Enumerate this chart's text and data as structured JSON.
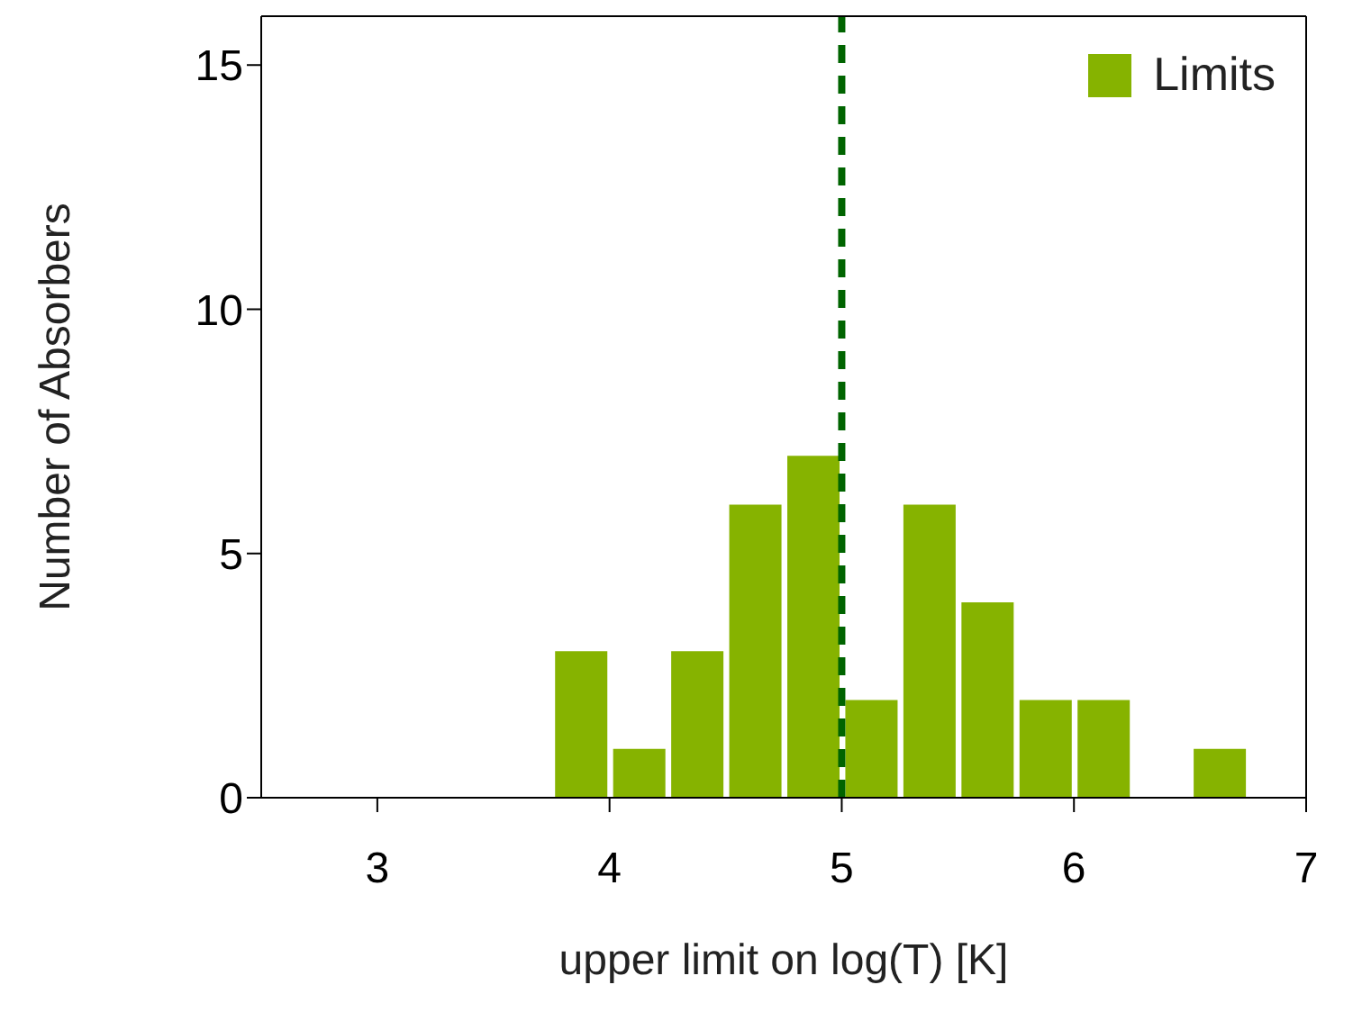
{
  "chart_data": {
    "type": "histogram",
    "xlabel": "upper limit on log(T) [K]",
    "ylabel": "Number of Absorbers",
    "bins": [
      3.75,
      4,
      4.25,
      4.5,
      4.75,
      5,
      5.25,
      5.5,
      5.75,
      6,
      6.25,
      6.5,
      6.75
    ],
    "series": [
      {
        "name": "Limits",
        "color": "#86b300",
        "values": [
          3,
          1,
          3,
          6,
          7,
          2,
          6,
          4,
          2,
          2,
          0,
          1
        ]
      }
    ],
    "xlim": [
      2.5,
      7
    ],
    "xticks": [
      3,
      4,
      5,
      6,
      7
    ],
    "ylim": [
      0,
      16
    ],
    "yticks": [
      0,
      5,
      10,
      15
    ],
    "ref_lines": [
      {
        "axis": "x",
        "value": 5,
        "color": "#006400",
        "line_style": "dashed"
      }
    ],
    "legend": "top right",
    "grid": false
  }
}
